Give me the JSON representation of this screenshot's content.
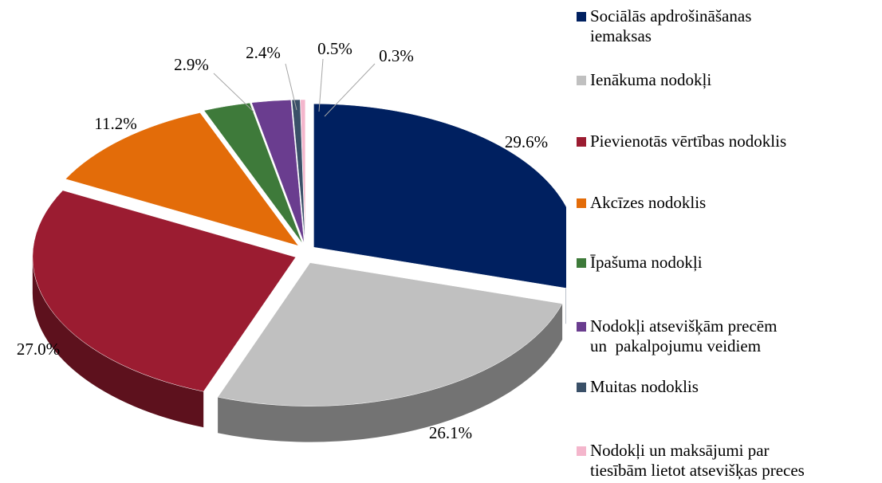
{
  "chart_data": {
    "type": "pie",
    "categories": [
      "Sociālās apdrošināšanas\niemaksas",
      "Ienākuma nodokļi",
      "Pievienotās vērtības nodoklis",
      "Akcīzes nodoklis",
      "Īpašuma nodokļi",
      "Nodokļi atsevišķām precēm\nun  pakalpojumu veidiem",
      "Muitas nodoklis",
      "Nodokļi un maksājumi par\ntiesībām lietot atsevišķas preces"
    ],
    "values": [
      29.6,
      26.1,
      27.0,
      11.2,
      2.9,
      2.4,
      0.5,
      0.3
    ],
    "value_labels": [
      "29.6%",
      "26.1%",
      "27.0%",
      "11.2%",
      "2.9%",
      "2.4%",
      "0.5%",
      "0.3%"
    ],
    "colors": [
      "#002060",
      "#c0c0c0",
      "#9b1c31",
      "#e36c09",
      "#3e7a3a",
      "#6a3d8f",
      "#3a5068",
      "#f4b6cc"
    ],
    "legend": "right"
  }
}
